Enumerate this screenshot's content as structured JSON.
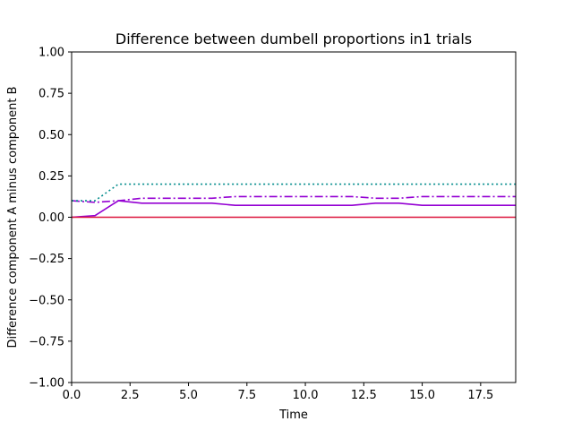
{
  "chart_data": {
    "type": "line",
    "title": "Difference between dumbell proportions in1 trials",
    "xlabel": "Time",
    "ylabel": "Difference component A minus component B",
    "xlim": [
      0,
      19
    ],
    "ylim": [
      -1.0,
      1.0
    ],
    "xticks": [
      "0.0",
      "2.5",
      "5.0",
      "7.5",
      "10.0",
      "12.5",
      "15.0",
      "17.5"
    ],
    "yticks": [
      "−1.00",
      "−0.75",
      "−0.50",
      "−0.25",
      "0.00",
      "0.25",
      "0.50",
      "0.75",
      "1.00"
    ],
    "grid": false,
    "x": [
      0,
      1,
      2,
      3,
      4,
      5,
      6,
      7,
      8,
      9,
      10,
      11,
      12,
      13,
      14,
      15,
      16,
      17,
      18,
      19
    ],
    "series": [
      {
        "color": "#9400d3",
        "dash": "solid",
        "values": [
          0.0,
          0.01,
          0.1,
          0.085,
          0.085,
          0.085,
          0.085,
          0.072,
          0.072,
          0.072,
          0.072,
          0.072,
          0.072,
          0.085,
          0.085,
          0.072,
          0.072,
          0.072,
          0.072,
          0.072
        ]
      },
      {
        "color": "#9400d3",
        "dash": "dashdot",
        "values": [
          0.1,
          0.09,
          0.1,
          0.115,
          0.115,
          0.115,
          0.115,
          0.125,
          0.125,
          0.125,
          0.125,
          0.125,
          0.125,
          0.115,
          0.115,
          0.125,
          0.125,
          0.125,
          0.125,
          0.125
        ]
      },
      {
        "color": "#008b8b",
        "dash": "dotted",
        "values": [
          0.1,
          0.1,
          0.2,
          0.2,
          0.2,
          0.2,
          0.2,
          0.2,
          0.2,
          0.2,
          0.2,
          0.2,
          0.2,
          0.2,
          0.2,
          0.2,
          0.2,
          0.2,
          0.2,
          0.2
        ]
      },
      {
        "color": "#dc143c",
        "dash": "solid",
        "values": [
          0.0,
          0.0,
          0.0,
          0.0,
          0.0,
          0.0,
          0.0,
          0.0,
          0.0,
          0.0,
          0.0,
          0.0,
          0.0,
          0.0,
          0.0,
          0.0,
          0.0,
          0.0,
          0.0,
          0.0
        ]
      }
    ]
  }
}
